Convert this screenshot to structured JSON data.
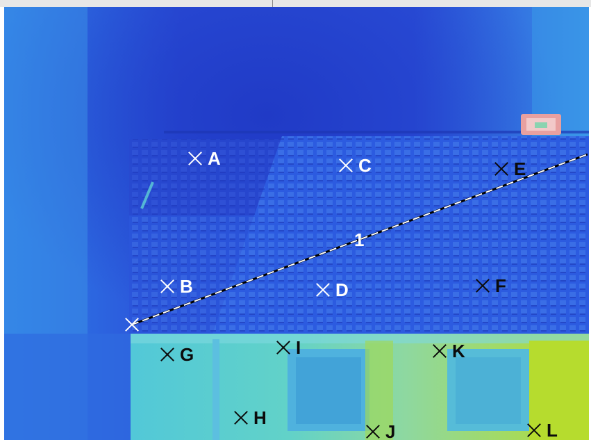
{
  "markers": [
    {
      "label": "A"
    },
    {
      "label": "B"
    },
    {
      "label": "C"
    },
    {
      "label": "D"
    },
    {
      "label": "E"
    },
    {
      "label": "F"
    },
    {
      "label": "G"
    },
    {
      "label": "H"
    },
    {
      "label": "I"
    },
    {
      "label": "J"
    },
    {
      "label": "K"
    },
    {
      "label": "L"
    }
  ],
  "profile_line": {
    "label": "1"
  },
  "colors": {
    "cold": "#1f3fd8",
    "mid": "#3aa6e6",
    "warm": "#7fd5c8",
    "hot": "#b5dd3a",
    "hotspot": "#e8a0a0",
    "marker_light": "#ffffff",
    "marker_dark": "#0b0b0b"
  }
}
